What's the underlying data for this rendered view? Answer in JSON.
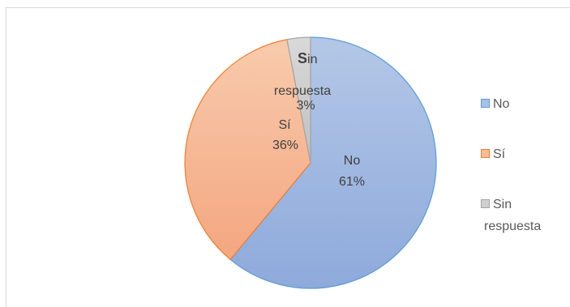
{
  "chart_data": {
    "type": "pie",
    "title": "",
    "categories": [
      "No",
      "Sí",
      "Sin respuesta"
    ],
    "values": [
      61,
      36,
      3
    ],
    "value_labels": [
      "61%",
      "36%",
      "3%"
    ],
    "colors": [
      "#8faadc",
      "#f4b183",
      "#bfbfbf"
    ],
    "stroke_colors": [
      "#5b9bd5",
      "#ed7d31",
      "#a5a5a5"
    ],
    "legend_position": "right"
  },
  "legend": {
    "items": [
      {
        "label": "No",
        "color": "#8faadc",
        "border": "#5b9bd5"
      },
      {
        "label": "Sí",
        "color": "#f4b183",
        "border": "#ed7d31"
      },
      {
        "label_line1": "Sin",
        "label_line2": "respuesta",
        "color": "#d0d0d0",
        "border": "#a5a5a5"
      }
    ]
  },
  "data_labels": {
    "no": {
      "name": "No",
      "pct": "61%"
    },
    "si": {
      "name": "Sí",
      "pct": "36%"
    },
    "sin": {
      "name_bold": "S",
      "name_rest": "in",
      "name_line2": "respuesta",
      "pct": "3%"
    }
  }
}
